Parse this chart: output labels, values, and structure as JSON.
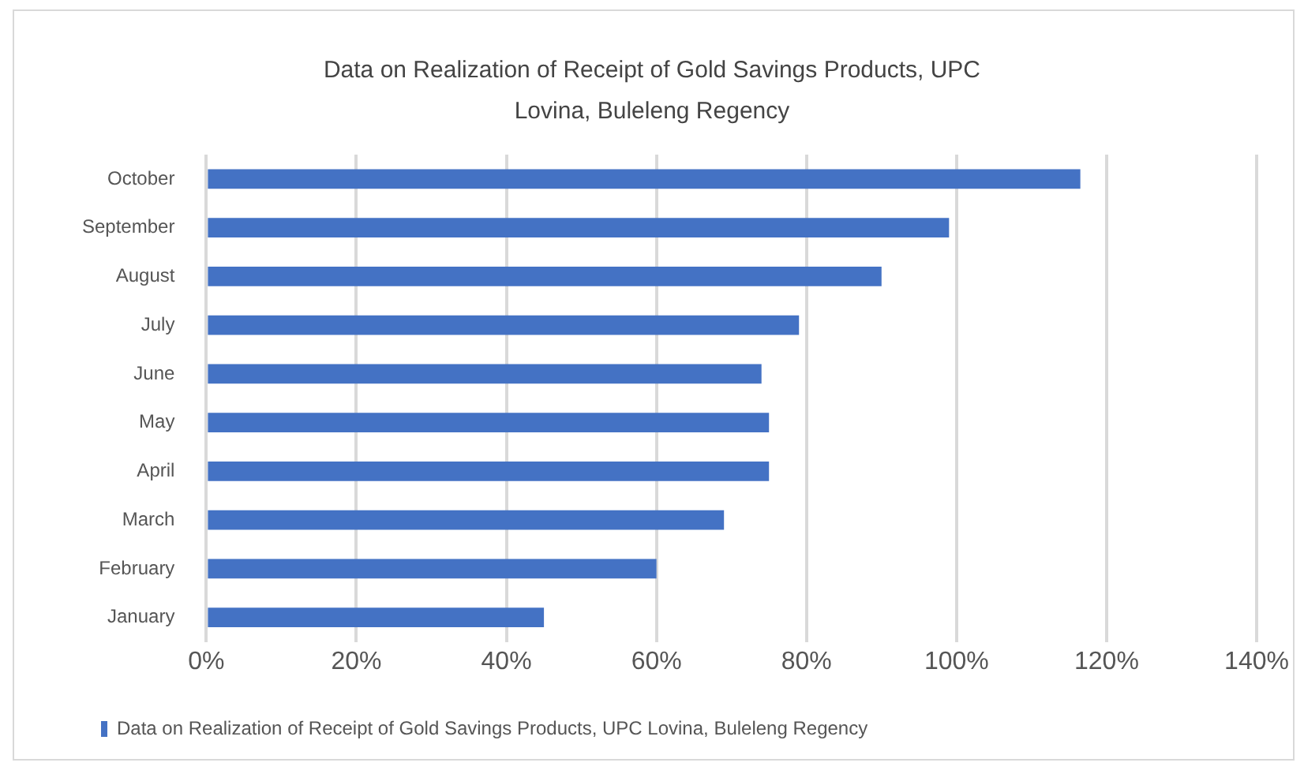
{
  "chart_data": {
    "type": "bar",
    "orientation": "horizontal",
    "title": "Data on Realization of Receipt of Gold Savings Products, UPC Lovina, Buleleng Regency",
    "categories": [
      "October",
      "September",
      "August",
      "July",
      "June",
      "May",
      "April",
      "March",
      "February",
      "January"
    ],
    "series": [
      {
        "name": "Data on Realization of Receipt of Gold Savings Products, UPC Lovina, Buleleng Regency",
        "color": "#4472c4",
        "values": [
          116.5,
          99,
          90,
          79,
          74,
          75,
          75,
          69,
          60,
          45
        ]
      }
    ],
    "xlim": [
      0,
      140
    ],
    "xticks": [
      {
        "value": 0,
        "label": "0%"
      },
      {
        "value": 20,
        "label": "20%"
      },
      {
        "value": 40,
        "label": "40%"
      },
      {
        "value": 60,
        "label": "60%"
      },
      {
        "value": 80,
        "label": "80%"
      },
      {
        "value": 100,
        "label": "100%"
      },
      {
        "value": 120,
        "label": "120%"
      },
      {
        "value": 140,
        "label": "140%"
      }
    ],
    "grid": "x",
    "legend": "bottom left"
  }
}
